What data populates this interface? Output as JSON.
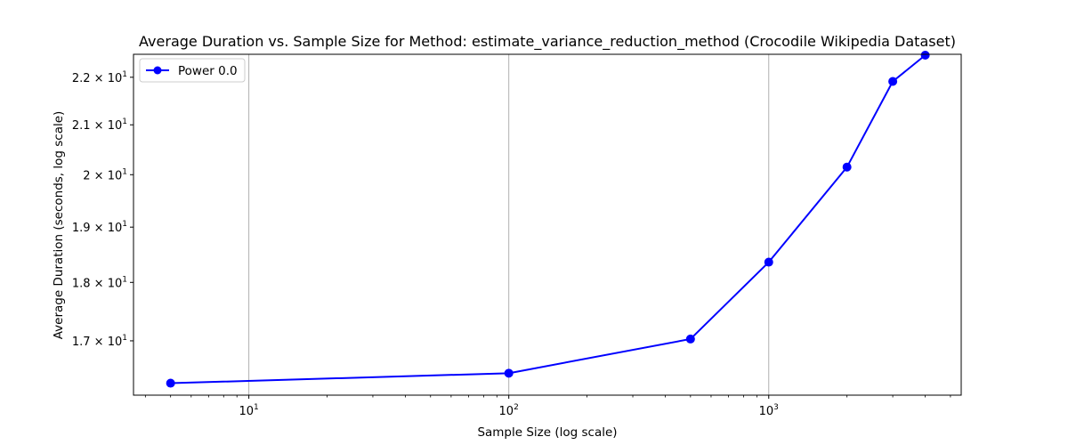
{
  "chart_data": {
    "type": "line",
    "title": "Average Duration vs. Sample Size for Method: estimate_variance_reduction_method (Crocodile Wikipedia Dataset)",
    "xlabel": "Sample Size (log scale)",
    "ylabel": "Average Duration (seconds, log scale)",
    "xscale": "log",
    "yscale": "log",
    "xlim": [
      3.6,
      5500
    ],
    "ylim": [
      16.12,
      22.5
    ],
    "grid": "x-major",
    "legend_position": "top-left",
    "x_major_ticks": [
      {
        "value": 10,
        "base": "10",
        "exp": "1"
      },
      {
        "value": 100,
        "base": "10",
        "exp": "2"
      },
      {
        "value": 1000,
        "base": "10",
        "exp": "3"
      }
    ],
    "y_ticks": [
      {
        "value": 17,
        "mantissa": "1.7",
        "base": "10",
        "exp": "1"
      },
      {
        "value": 18,
        "mantissa": "1.8",
        "base": "10",
        "exp": "1"
      },
      {
        "value": 19,
        "mantissa": "1.9",
        "base": "10",
        "exp": "1"
      },
      {
        "value": 20,
        "mantissa": "2",
        "base": "10",
        "exp": "1"
      },
      {
        "value": 21,
        "mantissa": "2.1",
        "base": "10",
        "exp": "1"
      },
      {
        "value": 22,
        "mantissa": "2.2",
        "base": "10",
        "exp": "1"
      }
    ],
    "series": [
      {
        "name": "Power 0.0",
        "color": "#0000ff",
        "marker": "circle",
        "x": [
          5,
          100,
          500,
          1000,
          2000,
          3000,
          4000
        ],
        "y": [
          16.31,
          16.47,
          17.03,
          18.36,
          20.15,
          21.91,
          22.48
        ]
      }
    ]
  }
}
